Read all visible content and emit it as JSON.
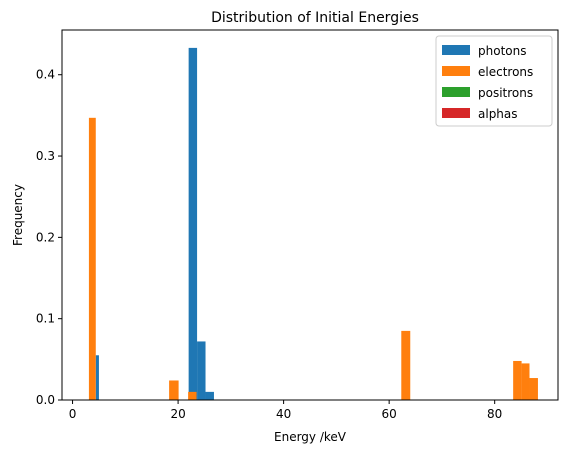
{
  "chart_data": {
    "type": "bar",
    "title": "Distribution of Initial Energies",
    "xlabel": "Energy /keV",
    "ylabel": "Frequency",
    "xlim": [
      -2,
      92
    ],
    "ylim": [
      0,
      0.455
    ],
    "xticks": [
      0,
      20,
      40,
      60,
      80
    ],
    "yticks": [
      0.0,
      0.1,
      0.2,
      0.3,
      0.4
    ],
    "ytick_labels": [
      "0.0",
      "0.1",
      "0.2",
      "0.3",
      "0.4"
    ],
    "grid": false,
    "legend_position": "top-right",
    "series": [
      {
        "name": "photons",
        "color": "#1f77b4",
        "bins": [
          {
            "x0": 4.4,
            "x1": 5.0,
            "value": 0.055
          },
          {
            "x0": 22.0,
            "x1": 23.6,
            "value": 0.433
          },
          {
            "x0": 23.6,
            "x1": 25.2,
            "value": 0.072
          },
          {
            "x0": 25.2,
            "x1": 26.8,
            "value": 0.01
          }
        ]
      },
      {
        "name": "electrons",
        "color": "#ff7f0e",
        "bins": [
          {
            "x0": 3.1,
            "x1": 4.4,
            "value": 0.347
          },
          {
            "x0": 18.3,
            "x1": 20.1,
            "value": 0.024
          },
          {
            "x0": 21.9,
            "x1": 23.5,
            "value": 0.01
          },
          {
            "x0": 62.3,
            "x1": 64.0,
            "value": 0.085
          },
          {
            "x0": 83.5,
            "x1": 85.1,
            "value": 0.048
          },
          {
            "x0": 85.1,
            "x1": 86.6,
            "value": 0.045
          },
          {
            "x0": 86.6,
            "x1": 88.2,
            "value": 0.027
          }
        ]
      },
      {
        "name": "positrons",
        "color": "#2ca02c",
        "bins": []
      },
      {
        "name": "alphas",
        "color": "#d62728",
        "bins": []
      }
    ]
  }
}
